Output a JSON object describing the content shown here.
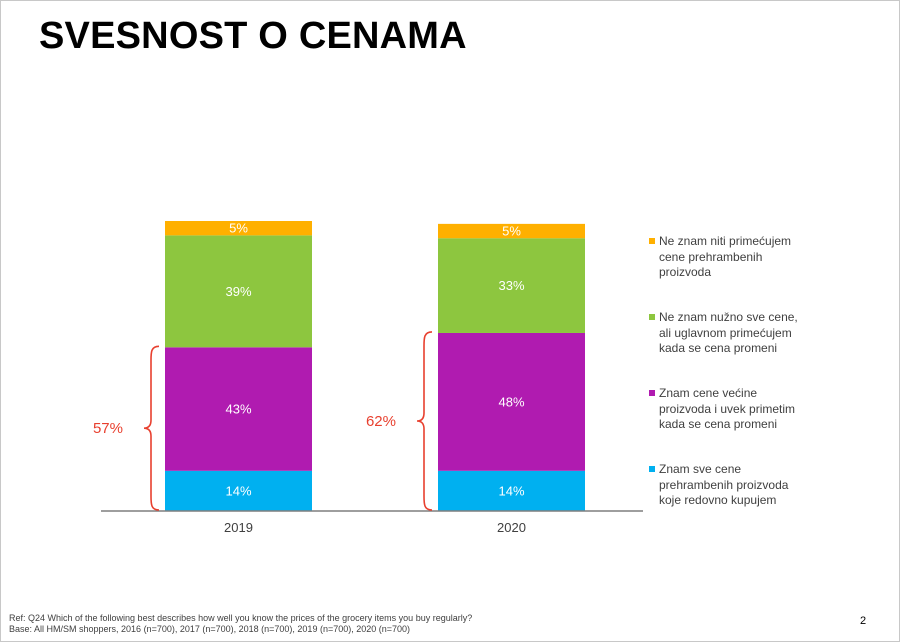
{
  "title": "SVESNOST O CENAMA",
  "chart_data": {
    "type": "bar",
    "stacked": true,
    "categories": [
      "2019",
      "2020"
    ],
    "series": [
      {
        "name": "Znam sve cene prehrambenih proizvoda koje redovno kupujem",
        "values": [
          14,
          14
        ],
        "labels": [
          "14%",
          "14%"
        ],
        "color": "#00b0f0"
      },
      {
        "name": "Znam cene većine proizvoda i uvek primetim kada se cena promeni",
        "values": [
          43,
          48
        ],
        "labels": [
          "43%",
          "48%"
        ],
        "color": "#b01bb0"
      },
      {
        "name": "Ne znam nužno sve cene, ali uglavnom primećujem kada se cena promeni",
        "values": [
          39,
          33
        ],
        "labels": [
          "39%",
          "33%"
        ],
        "color": "#8dc63f"
      },
      {
        "name": "Ne znam niti primećujem cene prehrambenih proizvoda",
        "values": [
          5,
          5
        ],
        "labels": [
          "5%",
          "5%"
        ],
        "color": "#ffb000"
      }
    ],
    "ylim": [
      0,
      101
    ],
    "grid": false,
    "legend_position": "right",
    "bracket_color": "#e8402f",
    "brackets": [
      {
        "category": "2019",
        "label": "57%",
        "from": 0,
        "to": 57
      },
      {
        "category": "2020",
        "label": "62%",
        "from": 0,
        "to": 62
      }
    ]
  },
  "legend": [
    {
      "lines": [
        "Ne znam niti primećujem",
        "cene prehrambenih",
        "proizvoda"
      ],
      "color": "#ffb000"
    },
    {
      "lines": [
        "Ne znam nužno sve cene,",
        "ali uglavnom primećujem",
        "kada se cena promeni"
      ],
      "color": "#8dc63f"
    },
    {
      "lines": [
        "Znam cene većine",
        "proizvoda i uvek primetim",
        "kada se cena promeni"
      ],
      "color": "#b01bb0"
    },
    {
      "lines": [
        "Znam sve cene",
        "prehrambenih proizvoda",
        "koje redovno kupujem"
      ],
      "color": "#00b0f0"
    }
  ],
  "footer": {
    "ref": "Ref:  Q24 Which of the following best describes how well you know the prices of the grocery items you buy regularly?",
    "base": "Base: All HM/SM shoppers, 2016 (n=700), 2017 (n=700), 2018 (n=700), 2019 (n=700), 2020 (n=700)"
  },
  "page_number": "2"
}
